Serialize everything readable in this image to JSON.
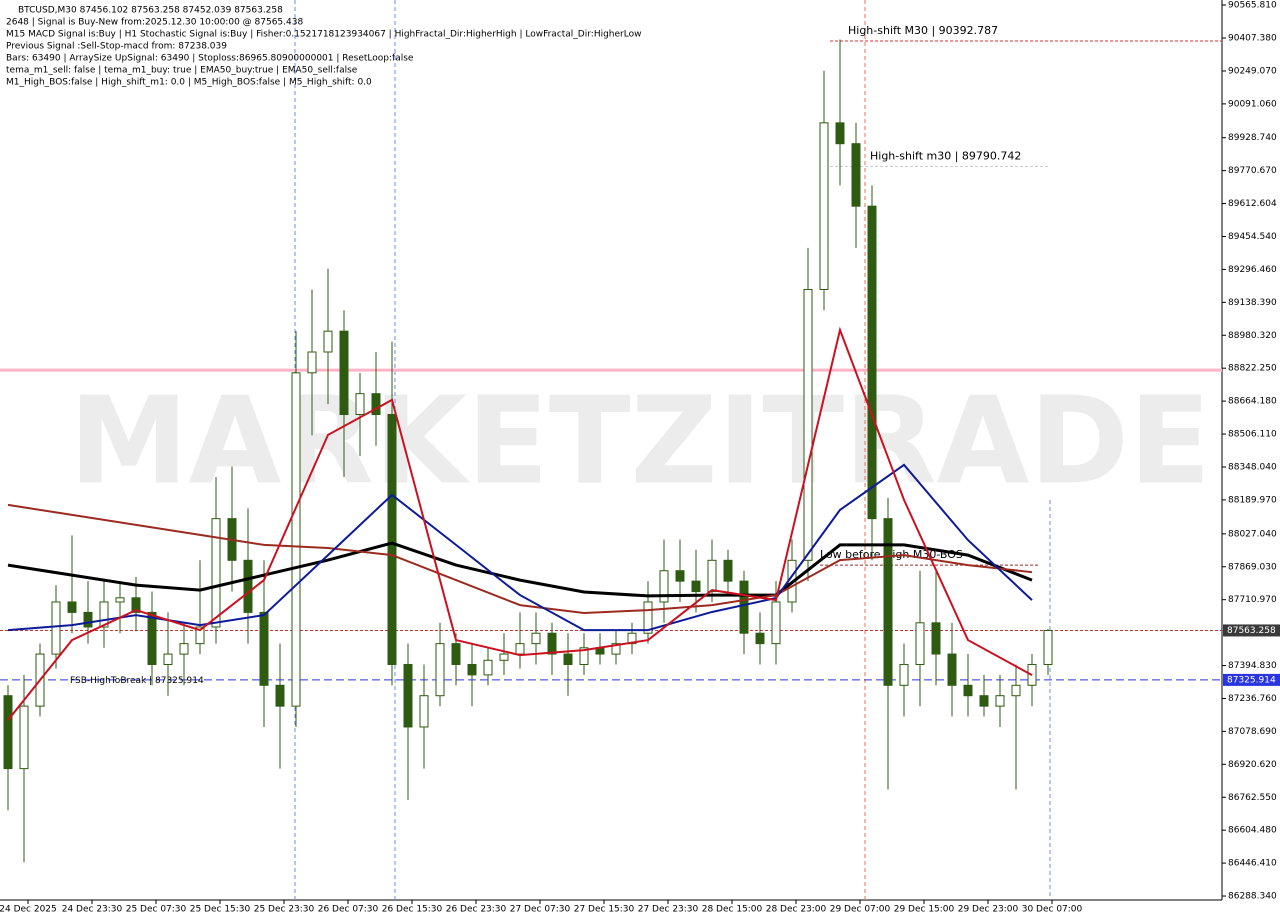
{
  "chart_data": {
    "type": "candlestick",
    "symbol_info": "BTCUSD,M30  87456.102 87563.258 87452.039 87563.258",
    "info_lines": [
      "2648 | Signal is Buy-New from:2025.12.30 10:00:00 @ 87565.438",
      "M15 MACD Signal is:Buy | H1 Stochastic Signal is:Buy | Fisher:0.1521718123934067 | HighFractal_Dir:HigherHigh | LowFractal_Dir:HigherLow",
      "Previous Signal :Sell-Stop-macd from: 87238.039",
      "Bars: 63490 | ArraySize UpSignal: 63490 | Stoploss:86965.80900000001 | ResetLoop:false",
      "tema_m1_sell: false | tema_m1_buy: true | EMA50_buy:true | EMA50_sell:false",
      "M1_High_BOS:false | High_shift_m1: 0.0 | M5_High_BOS:false | M5_High_shift: 0.0"
    ],
    "watermark": "MARKETZITRADE",
    "x_labels": [
      "24 Dec 2025",
      "24 Dec 23:30",
      "25 Dec 07:30",
      "25 Dec 15:30",
      "25 Dec 23:30",
      "26 Dec 07:30",
      "26 Dec 15:30",
      "26 Dec 23:30",
      "27 Dec 07:30",
      "27 Dec 15:30",
      "27 Dec 23:30",
      "28 Dec 15:00",
      "28 Dec 23:00",
      "29 Dec 07:00",
      "29 Dec 15:00",
      "29 Dec 23:00",
      "30 Dec 07:00"
    ],
    "ylim": [
      86269.3,
      90589.8
    ],
    "yticks": [
      {
        "value": 90565.81,
        "label": "90565.810"
      },
      {
        "value": 90407.38,
        "label": "90407.380"
      },
      {
        "value": 90249.07,
        "label": "90249.070"
      },
      {
        "value": 90091.06,
        "label": "90091.060"
      },
      {
        "value": 89928.74,
        "label": "89928.740"
      },
      {
        "value": 89770.67,
        "label": "89770.670"
      },
      89612.604,
      {
        "value": 89454.54,
        "label": "89454.540"
      },
      {
        "value": 89296.46,
        "label": "89296.460"
      },
      {
        "value": 89138.39,
        "label": "89138.390"
      },
      {
        "value": 88980.32,
        "label": "88980.320"
      },
      {
        "value": 88822.25,
        "label": "88822.250"
      },
      {
        "value": 88664.18,
        "label": "88664.180"
      },
      {
        "value": 88506.11,
        "label": "88506.110"
      },
      {
        "value": 88348.04,
        "label": "88348.040"
      },
      {
        "value": 88189.97,
        "label": "88189.970"
      },
      {
        "value": 88027.04,
        "label": "88027.040"
      },
      {
        "value": 87869.03,
        "label": "87869.030"
      },
      {
        "value": 87710.97,
        "label": "87710.970"
      },
      {
        "value": 87394.83,
        "label": "87394.830"
      },
      {
        "value": 87236.76,
        "label": "87236.760"
      },
      {
        "value": 87078.69,
        "label": "87078.690"
      },
      {
        "value": 86920.62,
        "label": "86920.620"
      },
      {
        "value": 86762.55,
        "label": "86762.550"
      },
      {
        "value": 86604.48,
        "label": "86604.480"
      },
      {
        "value": 86446.41,
        "label": "86446.410"
      },
      {
        "value": 86288.34,
        "label": "86288.340"
      }
    ],
    "candle_color": "#2f5a12",
    "open": [
      87250,
      86900,
      87200,
      87450,
      87700,
      87650,
      87580,
      87700,
      87720,
      87650,
      87400,
      87450,
      87500,
      87580,
      88100,
      87900,
      87650,
      87300,
      87200,
      88800,
      88900,
      89000,
      88600,
      88700,
      88600,
      87400,
      87100,
      87250,
      87500,
      87400,
      87350,
      87420,
      87450,
      87500,
      87550,
      87450,
      87400,
      87480,
      87450,
      87500,
      87550,
      87700,
      87850,
      87800,
      87750,
      87900,
      87800,
      87550,
      87500,
      87700,
      87900,
      89200,
      90000,
      89900,
      89600,
      88100,
      87300,
      87400,
      87600,
      87450,
      87300,
      87250,
      87200,
      87250,
      87300,
      87400
    ],
    "high": [
      87300,
      87350,
      87500,
      87780,
      88020,
      87800,
      87800,
      87800,
      87820,
      87750,
      87650,
      87600,
      87900,
      88300,
      88350,
      88150,
      87900,
      87500,
      89000,
      89200,
      89300,
      89100,
      88800,
      88900,
      88950,
      87500,
      87400,
      87600,
      87550,
      87500,
      87480,
      87550,
      87650,
      87650,
      87600,
      87550,
      87550,
      87550,
      87560,
      87600,
      87800,
      88000,
      88000,
      87950,
      88000,
      87950,
      87850,
      87650,
      87800,
      88000,
      89400,
      90250,
      90400,
      90000,
      89700,
      88200,
      87500,
      87850,
      87850,
      87600,
      87450,
      87350,
      87350,
      87400,
      87450,
      87570
    ],
    "low": [
      86700,
      86450,
      87150,
      87380,
      87550,
      87500,
      87480,
      87550,
      87560,
      87300,
      87250,
      87300,
      87450,
      87500,
      87750,
      87500,
      87100,
      86900,
      87100,
      88500,
      88650,
      88300,
      88400,
      88450,
      87300,
      86750,
      86900,
      87200,
      87300,
      87200,
      87300,
      87350,
      87380,
      87400,
      87350,
      87250,
      87350,
      87400,
      87400,
      87450,
      87500,
      87600,
      87700,
      87650,
      87700,
      87750,
      87450,
      87400,
      87400,
      87650,
      87800,
      89100,
      89700,
      89400,
      87900,
      86800,
      87150,
      87200,
      87300,
      87150,
      87150,
      87150,
      87100,
      86800,
      87200,
      87350
    ],
    "close": [
      86900,
      87200,
      87450,
      87700,
      87650,
      87580,
      87700,
      87720,
      87650,
      87400,
      87450,
      87500,
      87580,
      88100,
      87900,
      87650,
      87300,
      87200,
      88800,
      88900,
      89000,
      88600,
      88700,
      88600,
      87400,
      87100,
      87250,
      87500,
      87400,
      87350,
      87420,
      87450,
      87500,
      87550,
      87450,
      87400,
      87480,
      87450,
      87500,
      87550,
      87700,
      87850,
      87800,
      87750,
      87900,
      87800,
      87550,
      87500,
      87700,
      87900,
      89200,
      90000,
      89900,
      89600,
      88100,
      87300,
      87400,
      87600,
      87450,
      87300,
      87250,
      87200,
      87250,
      87300,
      87400,
      87563.258
    ],
    "series": [
      {
        "name": "MA slow",
        "color": "#000000",
        "values": [
          87877,
          87829,
          87781,
          87757,
          87829,
          87901,
          87983,
          87877,
          87805,
          87748,
          87729,
          87733,
          87733,
          87974,
          87974,
          87925,
          87805
        ]
      },
      {
        "name": "MA long",
        "color": "#9b2a20",
        "values": [
          88166,
          88118,
          88070,
          88022,
          87974,
          87959,
          87925,
          87805,
          87685,
          87647,
          87661,
          87685,
          87733,
          87901,
          87925,
          87877,
          87843
        ]
      },
      {
        "name": "MA mid",
        "color": "#0d1a9a",
        "values": [
          87565,
          87589,
          87637,
          87589,
          87637,
          87925,
          88214,
          87974,
          87733,
          87565,
          87565,
          87652,
          87719,
          88142,
          88358,
          87997,
          87709
        ]
      },
      {
        "name": "MA fast",
        "color": "#cc1020",
        "values": [
          87133,
          87517,
          87661,
          87565,
          87805,
          88502,
          88670,
          87517,
          87445,
          87469,
          87517,
          87757,
          87709,
          89006,
          88190,
          87517,
          87349
        ]
      }
    ],
    "levels": [
      {
        "value": 88813,
        "color": "#ffb3c6"
      },
      {
        "value": 87325.914,
        "color": "#2a35e0",
        "label": "FSB-HighToBreak | 87325.914",
        "axis_label": "87325.914"
      },
      {
        "value": 87563.258,
        "color": "#cc3333",
        "axis_label": "87563.258"
      },
      {
        "value": 90392.787,
        "color": "#dd3333",
        "label": "High-shift M30 | 90392.787"
      },
      {
        "value": 89790.742,
        "color": "#cccccc",
        "label": "High-shift m30 | 89790.742"
      },
      {
        "value": 87877,
        "color": "#9b2a20",
        "label": "Low before High   M30-BOS"
      }
    ]
  }
}
